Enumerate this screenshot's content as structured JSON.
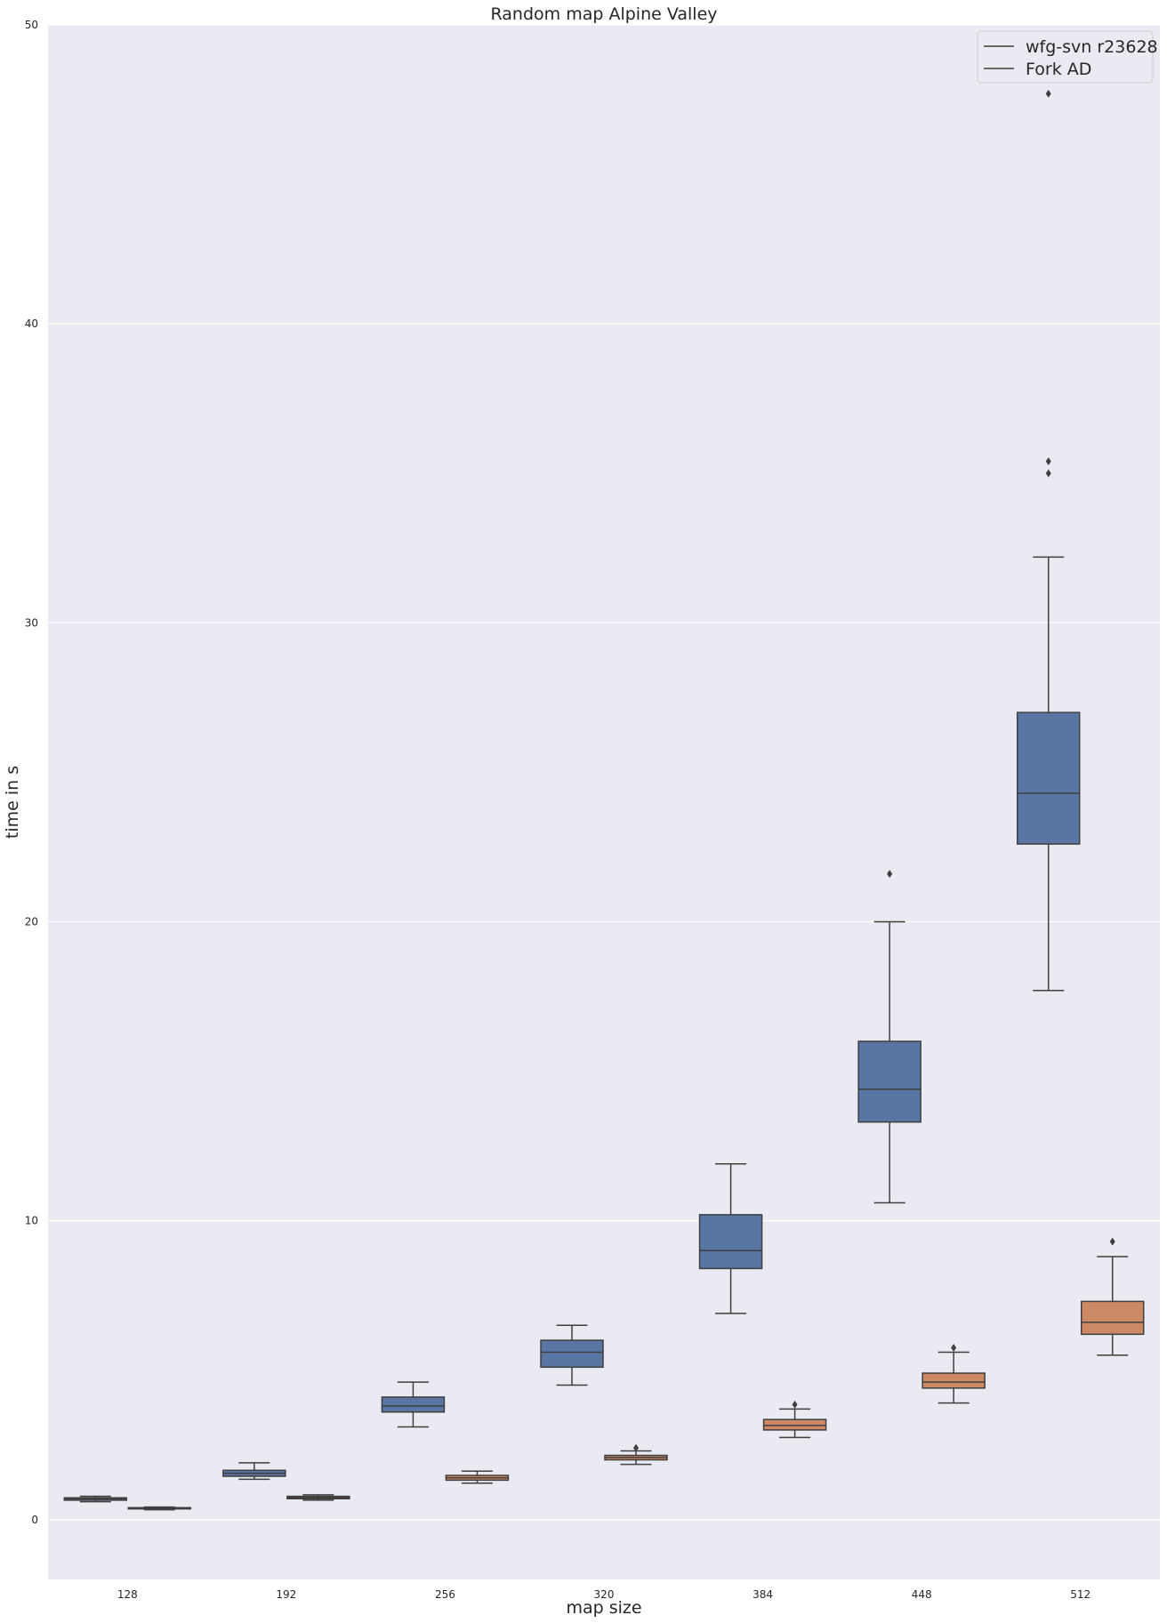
{
  "chart_data": {
    "type": "box",
    "title": "Random map Alpine Valley",
    "xlabel": "map size",
    "ylabel": "time in s",
    "ylim": [
      -2,
      50
    ],
    "yticks": [
      0,
      10,
      20,
      30,
      40,
      50
    ],
    "categories": [
      "128",
      "192",
      "256",
      "320",
      "384",
      "448",
      "512"
    ],
    "grid": "horizontal",
    "legend_position": "top-right",
    "background_color": "#eaeaf2",
    "series": [
      {
        "name": "wfg-svn r23628",
        "color": "#5875a4",
        "boxes": [
          {
            "whislo": 0.6,
            "q1": 0.65,
            "med": 0.7,
            "q3": 0.73,
            "whishi": 0.78,
            "fliers": []
          },
          {
            "whislo": 1.35,
            "q1": 1.45,
            "med": 1.55,
            "q3": 1.65,
            "whishi": 1.9,
            "fliers": []
          },
          {
            "whislo": 3.1,
            "q1": 3.6,
            "med": 3.8,
            "q3": 4.1,
            "whishi": 4.6,
            "fliers": []
          },
          {
            "whislo": 4.5,
            "q1": 5.1,
            "med": 5.6,
            "q3": 6.0,
            "whishi": 6.5,
            "fliers": []
          },
          {
            "whislo": 6.9,
            "q1": 8.4,
            "med": 9.0,
            "q3": 10.2,
            "whishi": 11.9,
            "fliers": []
          },
          {
            "whislo": 10.6,
            "q1": 13.3,
            "med": 14.4,
            "q3": 16.0,
            "whishi": 20.0,
            "fliers": [
              21.6
            ]
          },
          {
            "whislo": 17.7,
            "q1": 22.6,
            "med": 24.3,
            "q3": 27.0,
            "whishi": 32.2,
            "fliers": [
              35.0,
              35.4,
              47.7
            ]
          }
        ]
      },
      {
        "name": "Fork AD",
        "color": "#cc8963",
        "boxes": [
          {
            "whislo": 0.33,
            "q1": 0.36,
            "med": 0.38,
            "q3": 0.4,
            "whishi": 0.42,
            "fliers": []
          },
          {
            "whislo": 0.65,
            "q1": 0.7,
            "med": 0.74,
            "q3": 0.78,
            "whishi": 0.83,
            "fliers": []
          },
          {
            "whislo": 1.22,
            "q1": 1.32,
            "med": 1.4,
            "q3": 1.48,
            "whishi": 1.62,
            "fliers": []
          },
          {
            "whislo": 1.85,
            "q1": 2.0,
            "med": 2.08,
            "q3": 2.15,
            "whishi": 2.3,
            "fliers": [
              2.4
            ]
          },
          {
            "whislo": 2.75,
            "q1": 3.0,
            "med": 3.15,
            "q3": 3.35,
            "whishi": 3.7,
            "fliers": [
              3.85
            ]
          },
          {
            "whislo": 3.9,
            "q1": 4.4,
            "med": 4.6,
            "q3": 4.9,
            "whishi": 5.6,
            "fliers": [
              5.75
            ]
          },
          {
            "whislo": 5.5,
            "q1": 6.2,
            "med": 6.6,
            "q3": 7.3,
            "whishi": 8.8,
            "fliers": [
              9.3
            ]
          }
        ]
      }
    ]
  }
}
